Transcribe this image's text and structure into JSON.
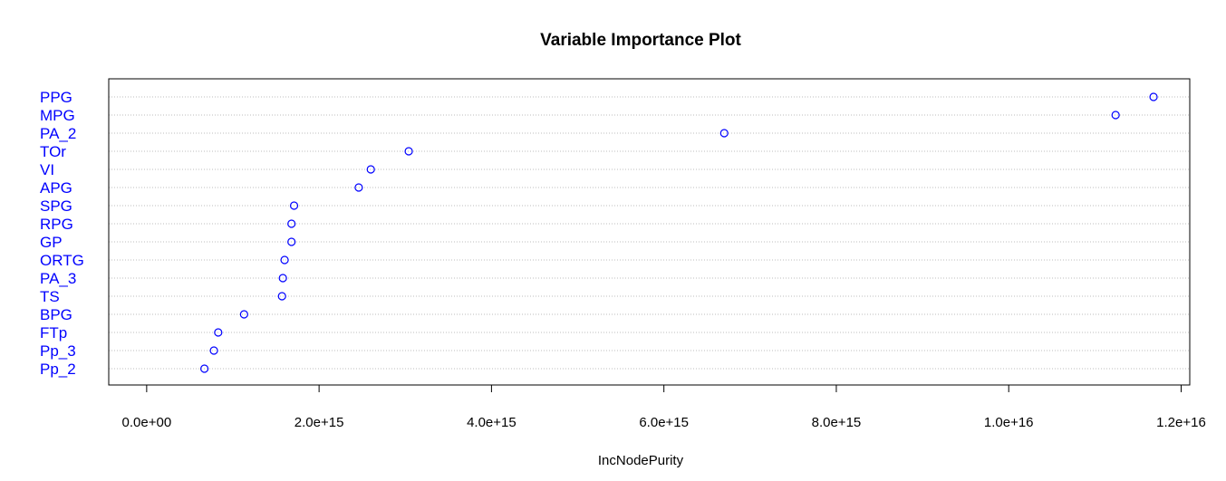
{
  "chart_data": {
    "type": "scatter",
    "title": "Variable Importance Plot",
    "xlabel": "IncNodePurity",
    "ylabel": "",
    "categories": [
      "PPG",
      "MPG",
      "PA_2",
      "TOr",
      "VI",
      "APG",
      "SPG",
      "RPG",
      "GP",
      "ORTG",
      "PA_3",
      "TS",
      "BPG",
      "FTp",
      "Pp_3",
      "Pp_2"
    ],
    "values": [
      1.168e+16,
      1.124e+16,
      6700000000000000.0,
      3040000000000000.0,
      2600000000000000.0,
      2460000000000000.0,
      1710000000000000.0,
      1680000000000000.0,
      1680000000000000.0,
      1600000000000000.0,
      1580000000000000.0,
      1570000000000000.0,
      1130000000000000.0,
      830000000000000.0,
      780000000000000.0,
      670000000000000.0
    ],
    "xlim": [
      -440000000000000.0,
      1.21e+16
    ],
    "xticks": [
      0,
      2000000000000000.0,
      4000000000000000.0,
      6000000000000000.0,
      8000000000000000.0,
      1e+16,
      1.2e+16
    ],
    "xtick_labels": [
      "0.0e+00",
      "2.0e+15",
      "4.0e+15",
      "6.0e+15",
      "8.0e+15",
      "1.0e+16",
      "1.2e+16"
    ],
    "grid": "horizontal dotted",
    "colors": {
      "points": "#0000ff",
      "labels": "#0000ff",
      "gridlines": "#bebebe",
      "axis": "#000000"
    }
  }
}
